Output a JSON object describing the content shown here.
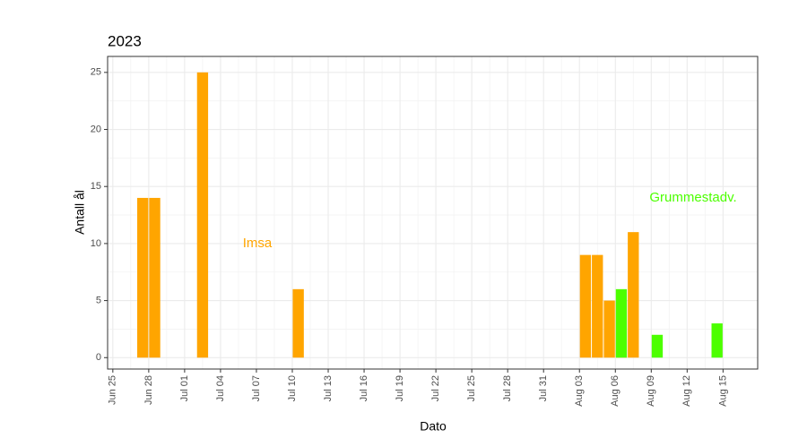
{
  "chart_data": {
    "type": "bar",
    "title": "2023",
    "x_label": "Dato",
    "y_label": "Antall ål",
    "series": [
      {
        "name": "Imsa",
        "color": "#ffa500",
        "x": [
          "2023-06-27",
          "2023-06-28",
          "2023-07-02",
          "2023-07-10",
          "2023-08-03",
          "2023-08-04",
          "2023-08-05",
          "2023-08-06",
          "2023-08-07"
        ],
        "values": [
          14,
          14,
          25,
          6,
          9,
          9,
          5,
          5,
          11
        ]
      },
      {
        "name": "Grummestadv.",
        "color": "#4cff00",
        "x": [
          "2023-08-06",
          "2023-08-09",
          "2023-08-14"
        ],
        "values": [
          6,
          2,
          3
        ]
      }
    ],
    "xlim": [
      "2023-06-24T13:30",
      "2023-08-17T21:30"
    ],
    "xticks": [
      {
        "value": "2023-06-25",
        "label": "Jun 25"
      },
      {
        "value": "2023-06-28",
        "label": "Jun 28"
      },
      {
        "value": "2023-07-01",
        "label": "Jul 01"
      },
      {
        "value": "2023-07-04",
        "label": "Jul 04"
      },
      {
        "value": "2023-07-07",
        "label": "Jul 07"
      },
      {
        "value": "2023-07-10",
        "label": "Jul 10"
      },
      {
        "value": "2023-07-13",
        "label": "Jul 13"
      },
      {
        "value": "2023-07-16",
        "label": "Jul 16"
      },
      {
        "value": "2023-07-19",
        "label": "Jul 19"
      },
      {
        "value": "2023-07-22",
        "label": "Jul 22"
      },
      {
        "value": "2023-07-25",
        "label": "Jul 25"
      },
      {
        "value": "2023-07-28",
        "label": "Jul 28"
      },
      {
        "value": "2023-07-31",
        "label": "Jul 31"
      },
      {
        "value": "2023-08-03",
        "label": "Aug 03"
      },
      {
        "value": "2023-08-06",
        "label": "Aug 06"
      },
      {
        "value": "2023-08-09",
        "label": "Aug 09"
      },
      {
        "value": "2023-08-12",
        "label": "Aug 12"
      },
      {
        "value": "2023-08-15",
        "label": "Aug 15"
      }
    ],
    "ylim": [
      -1.0,
      26.4
    ],
    "yticks": [
      0,
      5,
      10,
      15,
      20,
      25
    ],
    "grid": true
  }
}
